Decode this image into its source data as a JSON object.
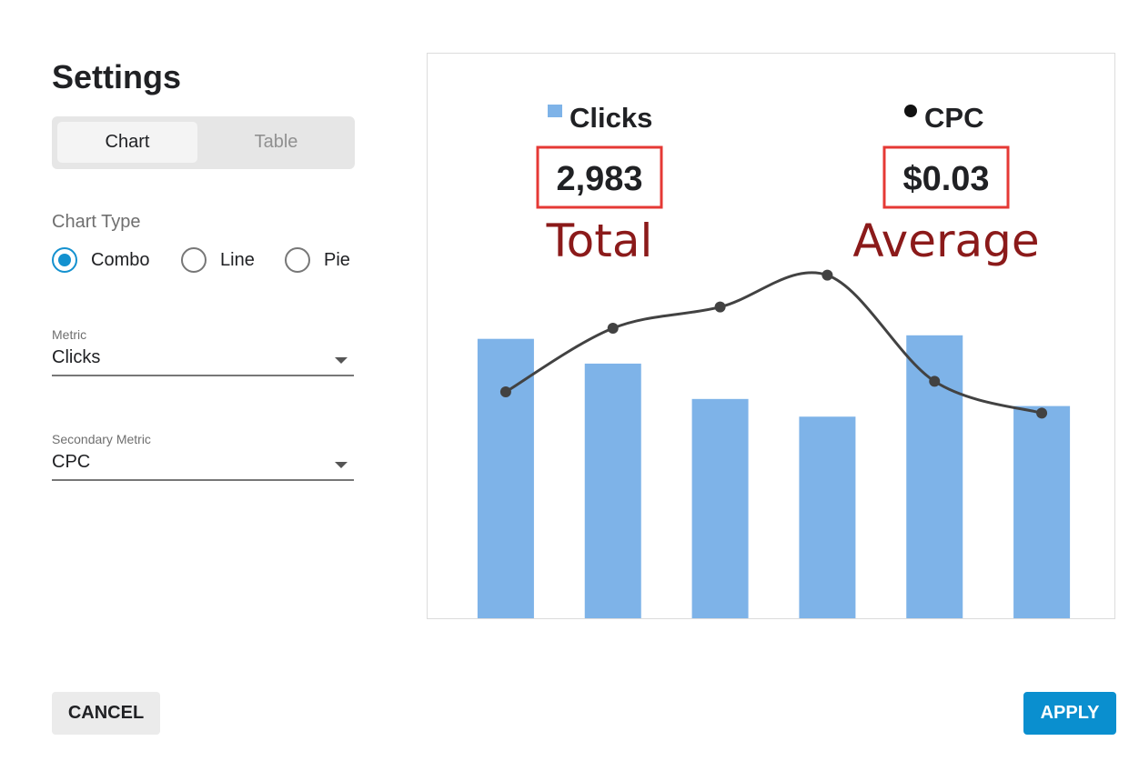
{
  "settings": {
    "title": "Settings",
    "view_tabs": [
      {
        "label": "Chart",
        "active": true
      },
      {
        "label": "Table",
        "active": false
      }
    ],
    "chart_type": {
      "label": "Chart Type",
      "options": [
        {
          "label": "Combo",
          "selected": true
        },
        {
          "label": "Line",
          "selected": false
        },
        {
          "label": "Pie",
          "selected": false
        }
      ]
    },
    "metric": {
      "label": "Metric",
      "value": "Clicks"
    },
    "secondary_metric": {
      "label": "Secondary Metric",
      "value": "CPC"
    }
  },
  "preview": {
    "primary": {
      "name": "Clicks",
      "value": "2,983",
      "annotation": "Total"
    },
    "secondary": {
      "name": "CPC",
      "value": "$0.03",
      "annotation": "Average"
    }
  },
  "footer": {
    "cancel_label": "CANCEL",
    "apply_label": "APPLY"
  },
  "colors": {
    "accent": "#0a8fcf",
    "bar": "#7eb3e8",
    "line": "#424242",
    "highlight_box": "#e53935",
    "annotation": "#8b1a1a"
  },
  "chart_data": {
    "type": "bar",
    "categories": [
      "",
      "",
      "",
      "",
      "",
      ""
    ],
    "series": [
      {
        "name": "Clicks",
        "type": "bar",
        "values": [
          0.79,
          0.72,
          0.62,
          0.57,
          0.8,
          0.6
        ]
      },
      {
        "name": "CPC",
        "type": "line",
        "values": [
          0.64,
          0.82,
          0.88,
          0.97,
          0.67,
          0.58
        ]
      }
    ],
    "ylim": [
      0,
      1
    ],
    "grid": false,
    "legend": "top"
  }
}
